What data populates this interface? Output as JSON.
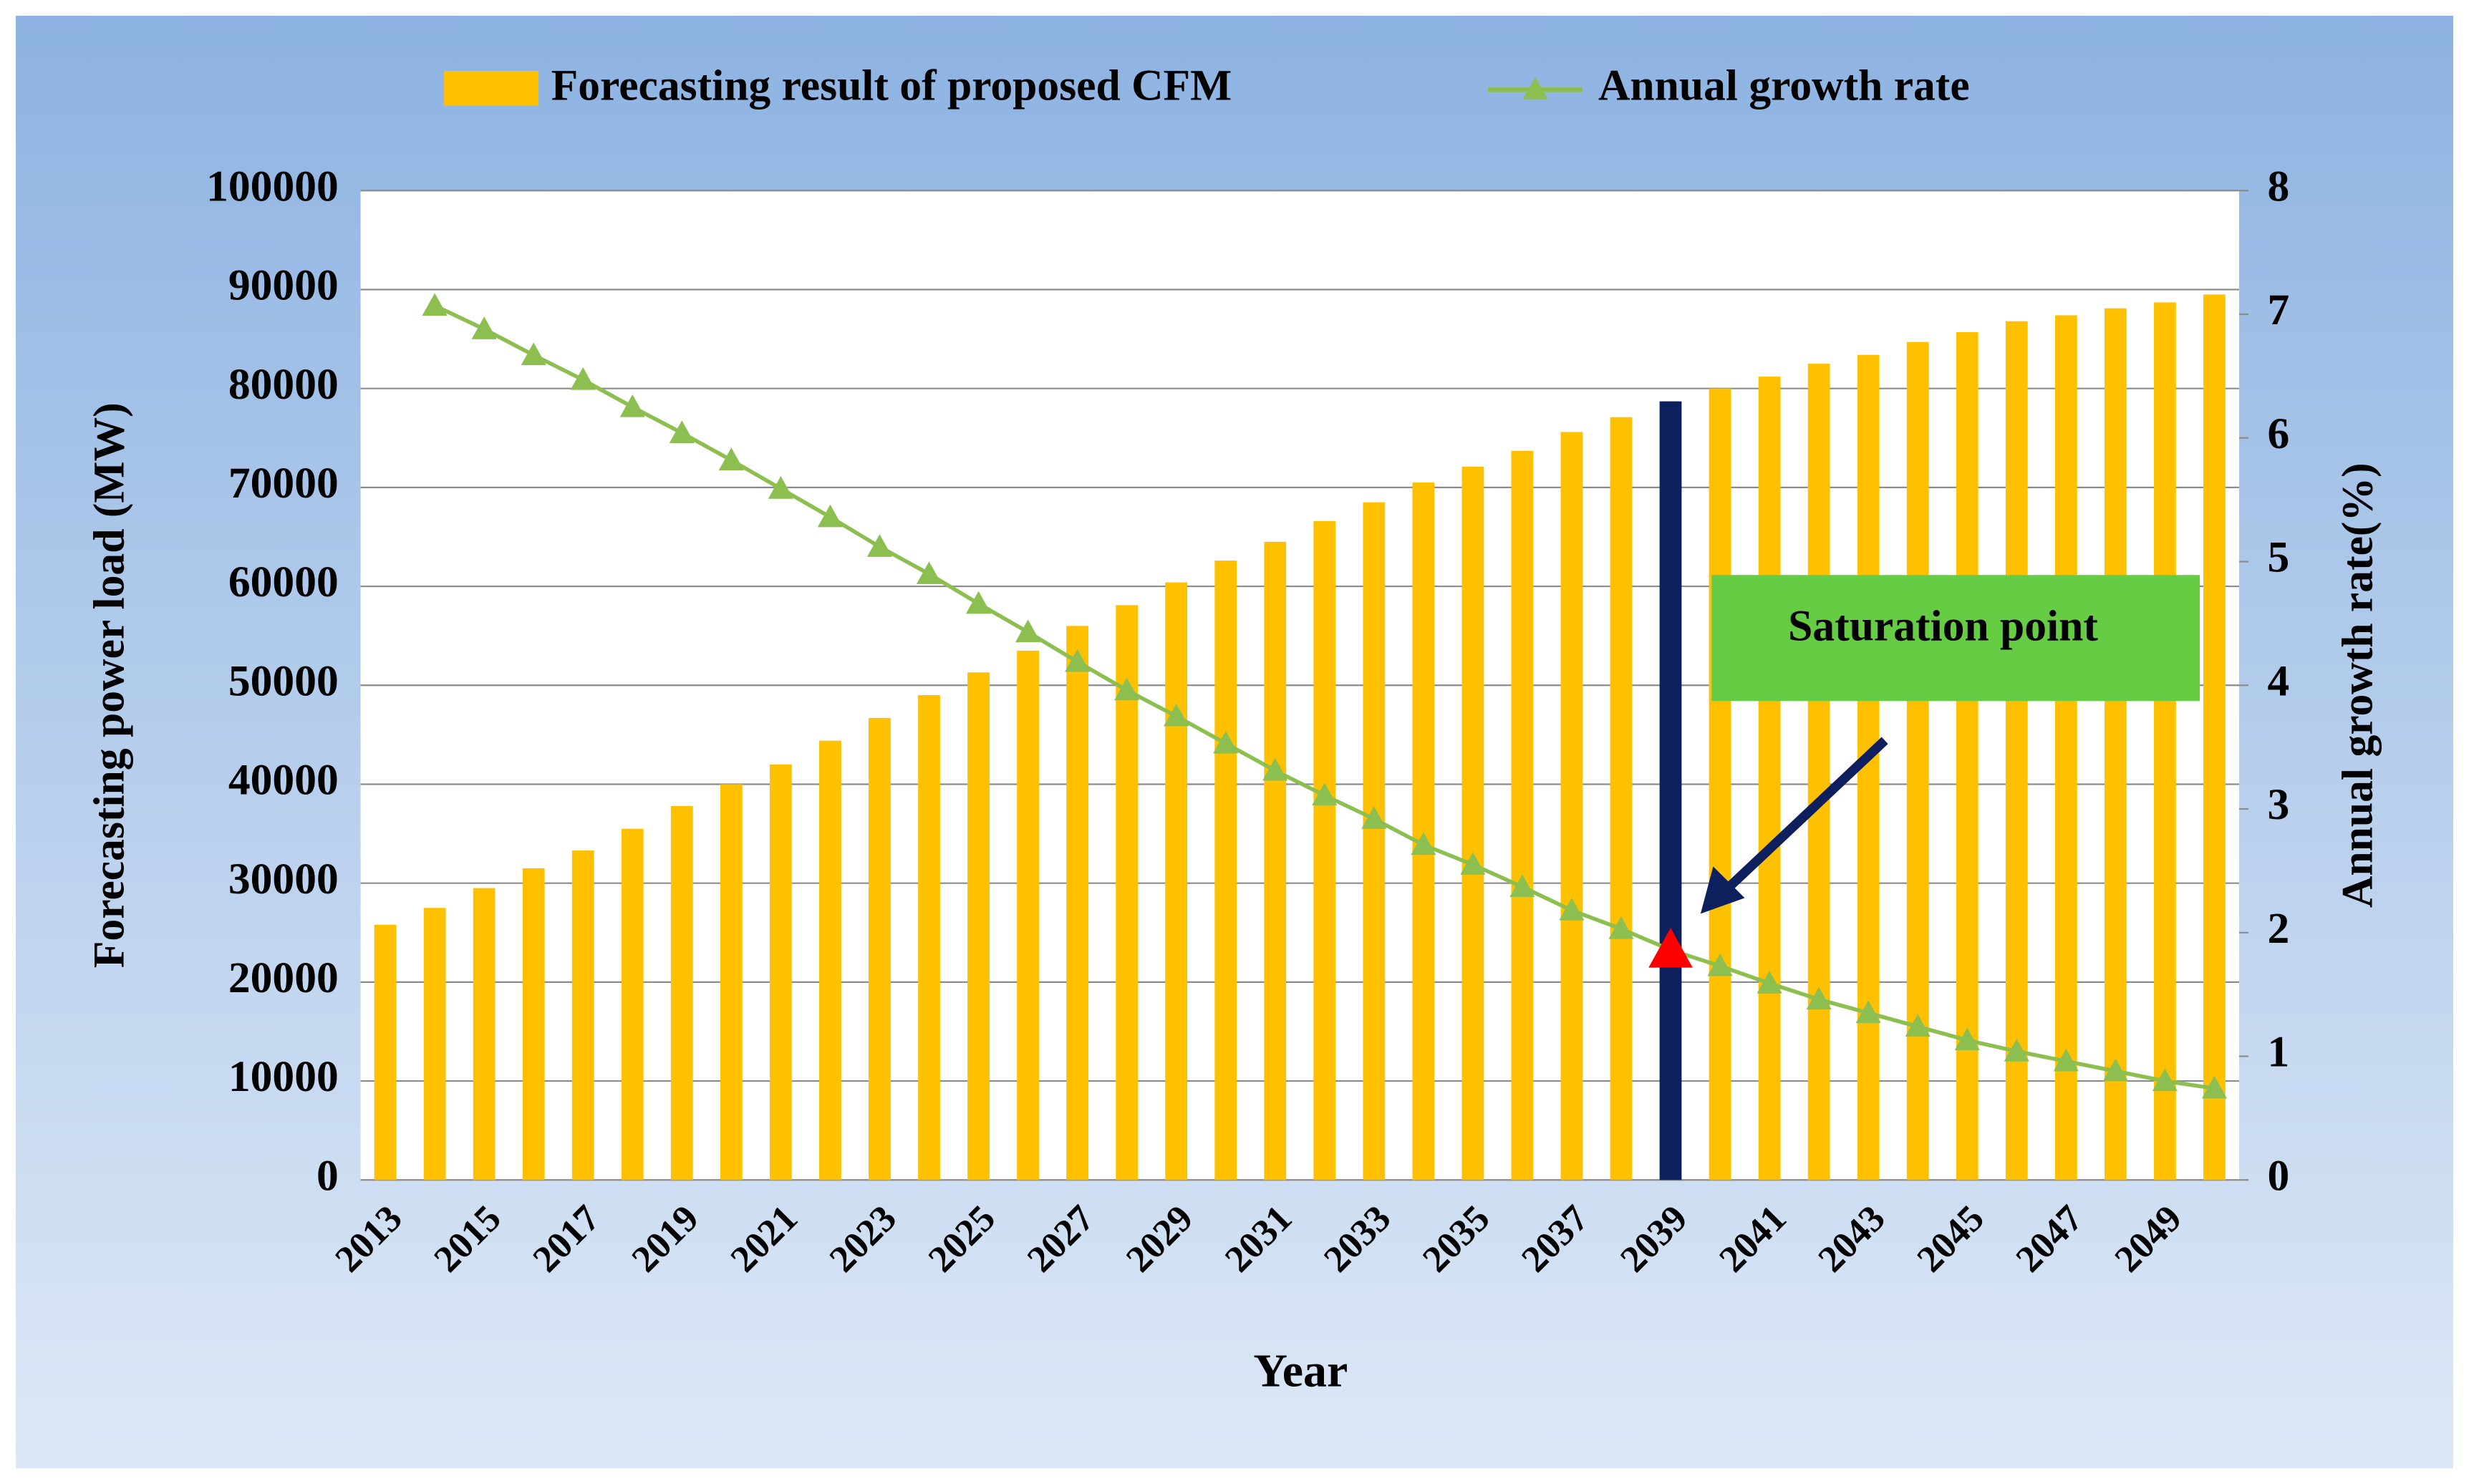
{
  "chart_data": {
    "type": "bar",
    "xlabel": "Year",
    "ylabel": "Forecasting power load (MW)",
    "y2label": "Annual growth rate(%)",
    "categories": [
      "2013",
      null,
      "2015",
      null,
      "2017",
      null,
      "2019",
      null,
      "2021",
      null,
      "2023",
      null,
      "2025",
      null,
      "2027",
      null,
      "2029",
      null,
      "2031",
      null,
      "2033",
      null,
      "2035",
      null,
      "2037",
      null,
      "2039",
      null,
      "2041",
      null,
      "2043",
      null,
      "2045",
      null,
      "2047",
      null,
      "2049",
      null
    ],
    "series": [
      {
        "name": "Forecasting result of proposed CFM",
        "type": "bar",
        "color": "#ffc000",
        "values": [
          25800,
          27500,
          29500,
          31500,
          33300,
          35500,
          37800,
          40000,
          42000,
          44400,
          46700,
          49000,
          51300,
          53500,
          56000,
          58100,
          60400,
          62600,
          64500,
          66600,
          68500,
          70500,
          72100,
          73700,
          75600,
          77100,
          78700,
          80000,
          81200,
          82500,
          83400,
          84700,
          85700,
          86800,
          87400,
          88100,
          88700,
          89500
        ]
      },
      {
        "name": "Annual growth rate",
        "type": "line",
        "axis": "y2",
        "color": "#8cbf50",
        "values": [
          null,
          7.07,
          6.88,
          6.67,
          6.47,
          6.25,
          6.04,
          5.82,
          5.59,
          5.36,
          5.12,
          4.9,
          4.66,
          4.43,
          4.19,
          3.96,
          3.75,
          3.53,
          3.31,
          3.11,
          2.92,
          2.71,
          2.55,
          2.37,
          2.18,
          2.03,
          1.86,
          1.73,
          1.59,
          1.46,
          1.35,
          1.24,
          1.13,
          1.04,
          0.96,
          0.88,
          0.8,
          0.74
        ]
      }
    ],
    "ylim": [
      0,
      100000
    ],
    "yticks": [
      0,
      10000,
      20000,
      30000,
      40000,
      50000,
      60000,
      70000,
      80000,
      90000,
      100000
    ],
    "y2lim": [
      0,
      8
    ],
    "y2ticks": [
      0,
      1,
      2,
      3,
      4,
      5,
      6,
      7,
      8
    ],
    "grid": true,
    "legend": "top",
    "annotation": {
      "text": "Saturation point",
      "category": "2039",
      "bar_color": "#0d1f5c",
      "marker_color": "#ff0000",
      "box_color": "#66cc44"
    }
  }
}
